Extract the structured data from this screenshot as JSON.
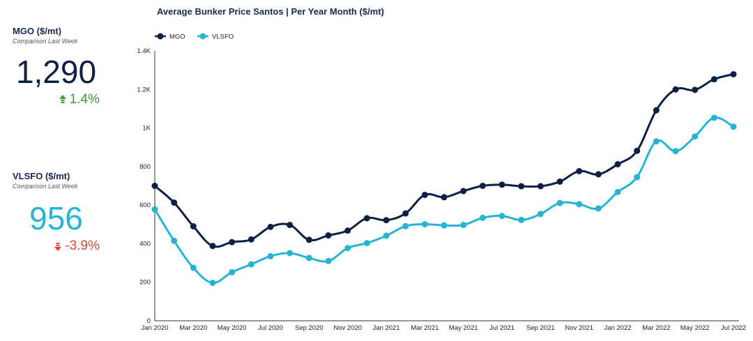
{
  "kpis": {
    "mgo": {
      "title": "MGO ($/mt)",
      "subtitle": "Comparison Last Week",
      "value": "1,290",
      "change": "1.4%",
      "direction": "up",
      "value_color": "#0d1f45",
      "change_color": "#3a9b3a"
    },
    "vlsfo": {
      "title": "VLSFO ($/mt)",
      "subtitle": "Comparison Last Week",
      "value": "956",
      "change": "-3.9%",
      "direction": "down",
      "value_color": "#27b3d3",
      "change_color": "#e3432f"
    }
  },
  "chart_data": {
    "type": "line",
    "title": "Average Bunker Price Santos | Per Year Month ($/mt)",
    "xlabel": "",
    "ylabel": "",
    "x": [
      "Jan 2020",
      "Feb 2020",
      "Mar 2020",
      "Apr 2020",
      "May 2020",
      "Jun 2020",
      "Jul 2020",
      "Aug 2020",
      "Sep 2020",
      "Oct 2020",
      "Nov 2020",
      "Dec 2020",
      "Jan 2021",
      "Feb 2021",
      "Mar 2021",
      "Apr 2021",
      "May 2021",
      "Jun 2021",
      "Jul 2021",
      "Aug 2021",
      "Sep 2021",
      "Oct 2021",
      "Nov 2021",
      "Dec 2021",
      "Jan 2022",
      "Feb 2022",
      "Mar 2022",
      "Apr 2022",
      "May 2022",
      "Jun 2022",
      "Jul 2022"
    ],
    "x_tick_labels": [
      "Jan 2020",
      "Mar 2020",
      "May 2020",
      "Jul 2020",
      "Sep 2020",
      "Nov 2020",
      "Jan 2021",
      "Mar 2021",
      "May 2021",
      "Jul 2021",
      "Sep 2021",
      "Nov 2021",
      "Jan 2022",
      "Mar 2022",
      "May 2022",
      "Jul 2022"
    ],
    "y_ticks": [
      0,
      200,
      400,
      600,
      800,
      1000,
      1200,
      1400
    ],
    "y_tick_labels": [
      "0",
      "200",
      "400",
      "600",
      "800",
      "1K",
      "1.2K",
      "1.4K"
    ],
    "ylim": [
      0,
      1400
    ],
    "legend_position": "top-left",
    "grid": false,
    "series": [
      {
        "name": "MGO",
        "color": "#0d1f45",
        "values": [
          700,
          613,
          490,
          388,
          408,
          422,
          487,
          497,
          420,
          443,
          468,
          532,
          522,
          557,
          653,
          641,
          673,
          700,
          706,
          698,
          698,
          722,
          776,
          760,
          812,
          882,
          1092,
          1200,
          1198,
          1253,
          1279
        ]
      },
      {
        "name": "VLSFO",
        "color": "#27b3d3",
        "values": [
          578,
          415,
          275,
          197,
          252,
          293,
          335,
          351,
          326,
          310,
          377,
          403,
          441,
          491,
          501,
          495,
          497,
          534,
          544,
          523,
          554,
          611,
          605,
          583,
          668,
          745,
          931,
          880,
          956,
          1053,
          1007
        ]
      }
    ]
  }
}
